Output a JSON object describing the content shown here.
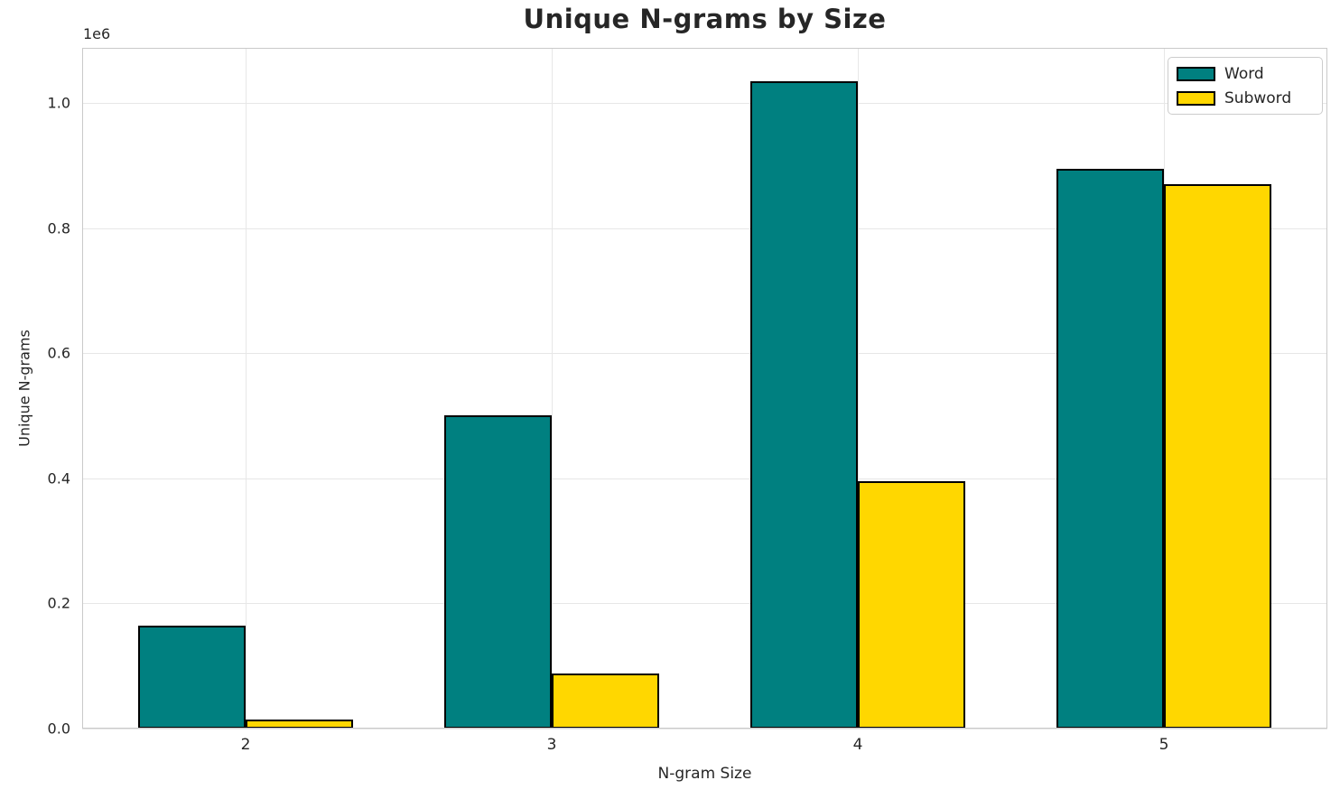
{
  "chart_data": {
    "type": "bar",
    "title": "Unique N-grams by Size",
    "xlabel": "N-gram Size",
    "ylabel": "Unique N-grams",
    "y_offset_label": "1e6",
    "categories": [
      "2",
      "3",
      "4",
      "5"
    ],
    "series": [
      {
        "name": "Word",
        "color": "#008080",
        "values": [
          165000,
          500000,
          1035000,
          895000
        ]
      },
      {
        "name": "Subword",
        "color": "#FFD700",
        "values": [
          15000,
          88000,
          395000,
          870000
        ]
      }
    ],
    "yticks": [
      0,
      200000,
      400000,
      600000,
      800000,
      1000000
    ],
    "ytick_labels": [
      "0.0",
      "0.2",
      "0.4",
      "0.6",
      "0.8",
      "1.0"
    ],
    "ylim": [
      0,
      1088000
    ],
    "grid": true,
    "legend_position": "upper right",
    "bar_edge_color": "#000000",
    "colors": {
      "text": "#262626",
      "grid": "#e7e7e7",
      "spine": "#c9c9c9",
      "background": "#ffffff"
    }
  }
}
